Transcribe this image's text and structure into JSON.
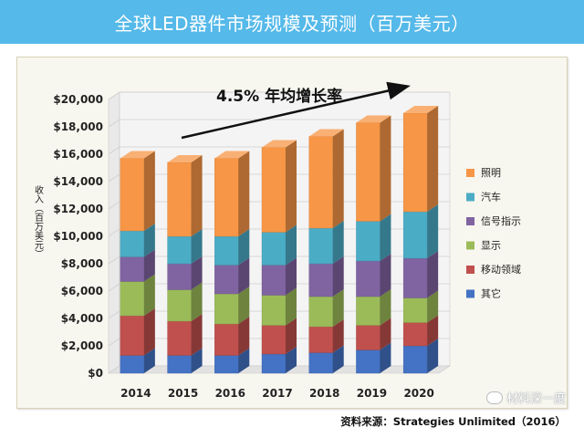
{
  "page": {
    "title": "全球LED器件市场规模及预测（百万美元）",
    "source": "资料来源：Strategies Unlimited（2016）",
    "watermark": "材料深一度"
  },
  "colors": {
    "title_bg": "#55b9e9",
    "series": {
      "其它": "#4472c4",
      "移动领域": "#c0504d",
      "显示": "#9bbb59",
      "信号指示": "#8064a2",
      "汽车": "#4bacc6",
      "照明": "#f79646"
    }
  },
  "chart_data": {
    "type": "bar",
    "stacked": true,
    "title": "",
    "annotation": "4.5% 年均增长率",
    "xlabel": "",
    "ylabel": "收入（百万美元）",
    "ylim": [
      0,
      20000
    ],
    "yticks": [
      0,
      2000,
      4000,
      6000,
      8000,
      10000,
      12000,
      14000,
      16000,
      18000,
      20000
    ],
    "ytick_labels": [
      "$0",
      "$2,000",
      "$4,000",
      "$6,000",
      "$8,000",
      "$10,000",
      "$12,000",
      "$14,000",
      "$16,000",
      "$18,000",
      "$20,000"
    ],
    "categories": [
      "2014",
      "2015",
      "2016",
      "2017",
      "2018",
      "2019",
      "2020"
    ],
    "series": [
      {
        "name": "其它",
        "values": [
          1300,
          1300,
          1300,
          1400,
          1500,
          1700,
          2000
        ]
      },
      {
        "name": "移动领域",
        "values": [
          2900,
          2500,
          2300,
          2100,
          1900,
          1800,
          1700
        ]
      },
      {
        "name": "显示",
        "values": [
          2500,
          2300,
          2200,
          2200,
          2200,
          2100,
          1800
        ]
      },
      {
        "name": "信号指示",
        "values": [
          1800,
          1900,
          2100,
          2200,
          2400,
          2600,
          2900
        ]
      },
      {
        "name": "汽车",
        "values": [
          1900,
          2000,
          2100,
          2400,
          2600,
          2900,
          3400
        ]
      },
      {
        "name": "照明",
        "values": [
          5300,
          5400,
          5700,
          6200,
          6700,
          7200,
          7200
        ]
      }
    ],
    "legend": {
      "position": "right",
      "order": [
        "照明",
        "汽车",
        "信号指示",
        "显示",
        "移动领域",
        "其它"
      ]
    }
  }
}
